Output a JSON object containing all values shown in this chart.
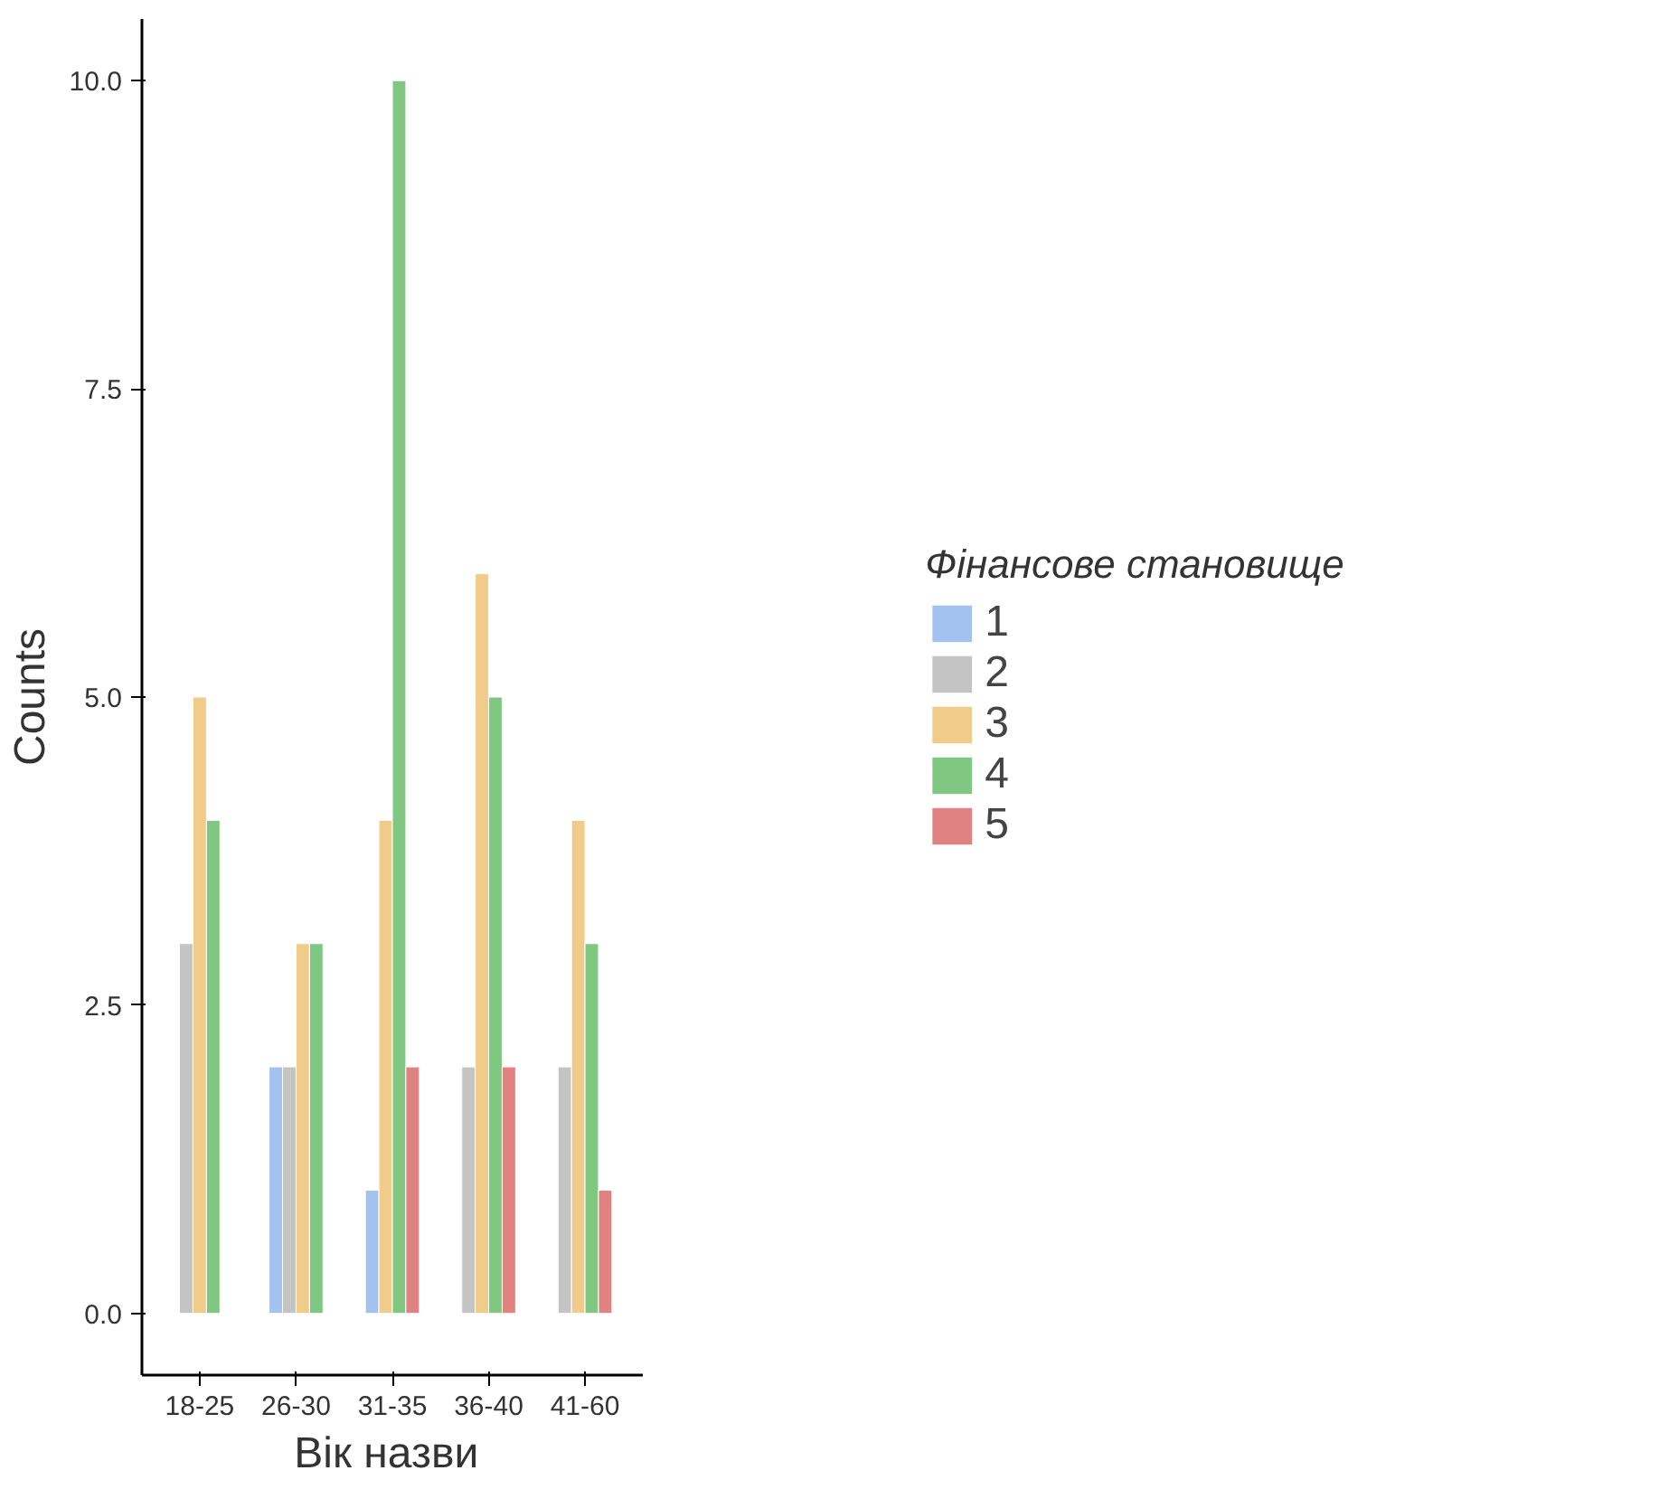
{
  "chart_data": {
    "type": "bar",
    "xlabel": "Вік  назви",
    "ylabel": "Counts",
    "legend_title": "Фінансове становище",
    "categories": [
      "18-25",
      "26-30",
      "31-35",
      "36-40",
      "41-60"
    ],
    "series": [
      {
        "name": "1",
        "color": "#a4c2f0",
        "values": [
          null,
          2,
          1,
          null,
          null
        ]
      },
      {
        "name": "2",
        "color": "#c4c4c4",
        "values": [
          3,
          2,
          null,
          2,
          2
        ]
      },
      {
        "name": "3",
        "color": "#f0cb8a",
        "values": [
          5,
          3,
          4,
          6,
          4
        ]
      },
      {
        "name": "4",
        "color": "#80c882",
        "values": [
          4,
          3,
          10,
          5,
          3
        ]
      },
      {
        "name": "5",
        "color": "#e08282",
        "values": [
          null,
          null,
          2,
          2,
          1
        ]
      }
    ],
    "ylim": [
      -0.5,
      10.5
    ],
    "yticks": [
      {
        "value": 0,
        "label": "0.0"
      },
      {
        "value": 2.5,
        "label": "2.5"
      },
      {
        "value": 5,
        "label": "5.0"
      },
      {
        "value": 7.5,
        "label": "7.5"
      },
      {
        "value": 10,
        "label": "10.0"
      }
    ],
    "grid": false,
    "legend": "right"
  }
}
